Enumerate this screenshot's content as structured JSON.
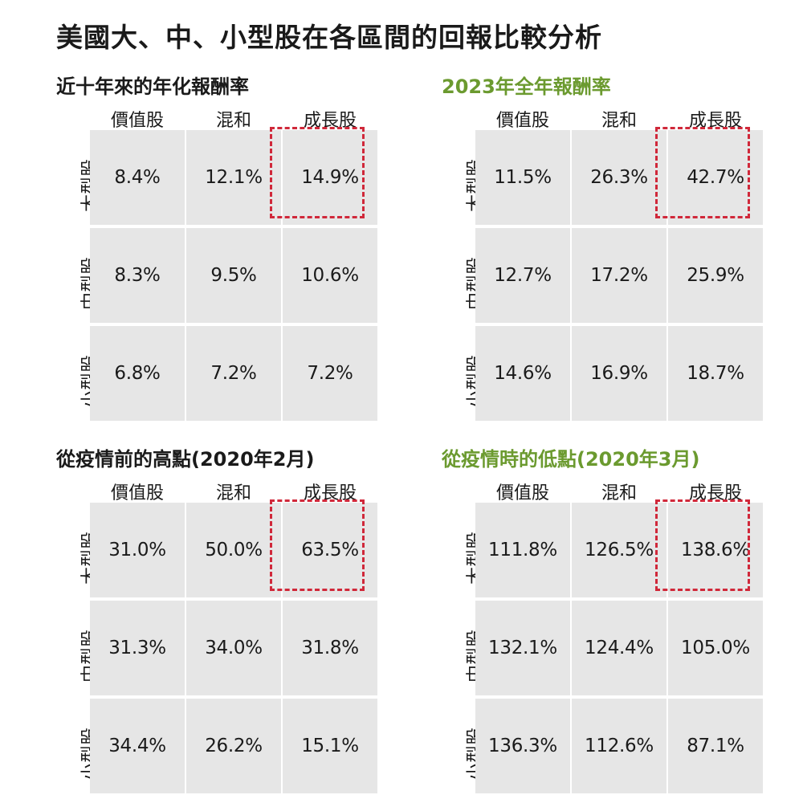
{
  "title": "美國大、中、小型股在各區間的回報比較分析",
  "colors": {
    "text": "#1a1a1a",
    "accent_green": "#6b9a2f",
    "cell_bg": "#e6e6e6",
    "highlight_red": "#d0283a"
  },
  "chart_data": [
    {
      "type": "table",
      "title": "近十年來的年化報酬率",
      "title_color": "#1a1a1a",
      "columns": [
        "價值股",
        "混和",
        "成長股"
      ],
      "rows": [
        "大型股",
        "中型股",
        "小型股"
      ],
      "values": [
        [
          "8.4%",
          "12.1%",
          "14.9%"
        ],
        [
          "8.3%",
          "9.5%",
          "10.6%"
        ],
        [
          "6.8%",
          "7.2%",
          "7.2%"
        ]
      ],
      "highlight": "大型股 成長股"
    },
    {
      "type": "table",
      "title": "2023年全年報酬率",
      "title_color": "#6b9a2f",
      "columns": [
        "價值股",
        "混和",
        "成長股"
      ],
      "rows": [
        "大型股",
        "中型股",
        "小型股"
      ],
      "values": [
        [
          "11.5%",
          "26.3%",
          "42.7%"
        ],
        [
          "12.7%",
          "17.2%",
          "25.9%"
        ],
        [
          "14.6%",
          "16.9%",
          "18.7%"
        ]
      ],
      "highlight": "大型股 成長股"
    },
    {
      "type": "table",
      "title": "從疫情前的高點(2020年2月)",
      "title_color": "#1a1a1a",
      "columns": [
        "價值股",
        "混和",
        "成長股"
      ],
      "rows": [
        "大型股",
        "中型股",
        "小型股"
      ],
      "values": [
        [
          "31.0%",
          "50.0%",
          "63.5%"
        ],
        [
          "31.3%",
          "34.0%",
          "31.8%"
        ],
        [
          "34.4%",
          "26.2%",
          "15.1%"
        ]
      ],
      "highlight": "大型股 成長股"
    },
    {
      "type": "table",
      "title": "從疫情時的低點(2020年3月)",
      "title_color": "#6b9a2f",
      "columns": [
        "價值股",
        "混和",
        "成長股"
      ],
      "rows": [
        "大型股",
        "中型股",
        "小型股"
      ],
      "values": [
        [
          "111.8%",
          "126.5%",
          "138.6%"
        ],
        [
          "132.1%",
          "124.4%",
          "105.0%"
        ],
        [
          "136.3%",
          "112.6%",
          "87.1%"
        ]
      ],
      "highlight": "大型股 成長股"
    }
  ]
}
